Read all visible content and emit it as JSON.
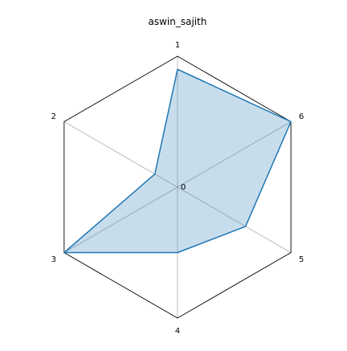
{
  "chart_data": {
    "type": "radar",
    "title": "aswin_sajith",
    "axes": [
      "1",
      "6",
      "5",
      "4",
      "3",
      "2"
    ],
    "center_label": "0",
    "series": [
      {
        "values": [
          0.9,
          1.0,
          0.6,
          0.5,
          1.0,
          0.2
        ]
      }
    ],
    "range": [
      0,
      1
    ],
    "grid": true,
    "colors": {
      "line": "#1f77b4",
      "fill": "#1f77b4",
      "frame": "#000000",
      "spoke": "#b0b0b0"
    }
  }
}
